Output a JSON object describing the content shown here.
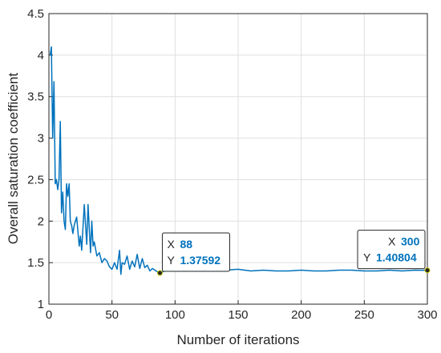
{
  "chart_data": {
    "type": "line",
    "xlabel": "Number of iterations",
    "ylabel": "Overall saturation coefficient",
    "xlim": [
      0,
      300
    ],
    "ylim": [
      1,
      4.5
    ],
    "xticks": [
      "0",
      "50",
      "100",
      "150",
      "200",
      "250",
      "300"
    ],
    "yticks": [
      "1",
      "1.5",
      "2",
      "2.5",
      "3",
      "3.5",
      "4",
      "4.5"
    ],
    "grid": true,
    "line_color": "#0072BD",
    "series": [
      {
        "x": [
          1,
          2,
          3,
          4,
          5,
          6,
          7,
          8,
          9,
          10,
          11,
          12,
          13,
          14,
          15,
          16,
          17,
          18,
          19,
          20,
          22,
          24,
          25,
          26,
          28,
          30,
          31,
          33,
          34,
          35,
          36,
          38,
          40,
          42,
          44,
          46,
          48,
          50,
          52,
          54,
          56,
          57,
          58,
          60,
          62,
          64,
          66,
          68,
          70,
          72,
          74,
          76,
          78,
          80,
          82,
          84,
          86,
          88,
          95,
          100,
          110,
          120,
          130,
          140,
          150,
          160,
          170,
          180,
          190,
          200,
          210,
          220,
          230,
          240,
          250,
          260,
          270,
          280,
          290,
          300
        ],
        "values": [
          4.0,
          4.1,
          3.0,
          3.68,
          2.45,
          2.5,
          2.38,
          2.5,
          3.2,
          2.1,
          2.35,
          2.0,
          1.9,
          2.45,
          2.3,
          2.45,
          2.0,
          1.95,
          1.85,
          1.95,
          2.05,
          1.7,
          1.82,
          1.65,
          2.2,
          1.72,
          2.2,
          1.62,
          2.0,
          1.7,
          1.75,
          1.58,
          1.62,
          1.5,
          1.55,
          1.52,
          1.45,
          1.42,
          1.5,
          1.42,
          1.65,
          1.36,
          1.5,
          1.48,
          1.58,
          1.42,
          1.52,
          1.45,
          1.6,
          1.43,
          1.55,
          1.44,
          1.47,
          1.4,
          1.43,
          1.41,
          1.39,
          1.37592,
          1.42,
          1.4,
          1.41,
          1.41,
          1.4,
          1.41,
          1.42,
          1.4,
          1.41,
          1.4,
          1.4,
          1.41,
          1.4,
          1.4,
          1.41,
          1.41,
          1.4,
          1.4,
          1.41,
          1.4,
          1.41,
          1.40804
        ]
      }
    ],
    "datatips": [
      {
        "x_key": "X",
        "x_val": "88",
        "y_key": "Y",
        "y_val": "1.37592",
        "x": 88,
        "y": 1.37592
      },
      {
        "x_key": "X",
        "x_val": "300",
        "y_key": "Y",
        "y_val": "1.40804",
        "x": 300,
        "y": 1.40804
      }
    ]
  }
}
